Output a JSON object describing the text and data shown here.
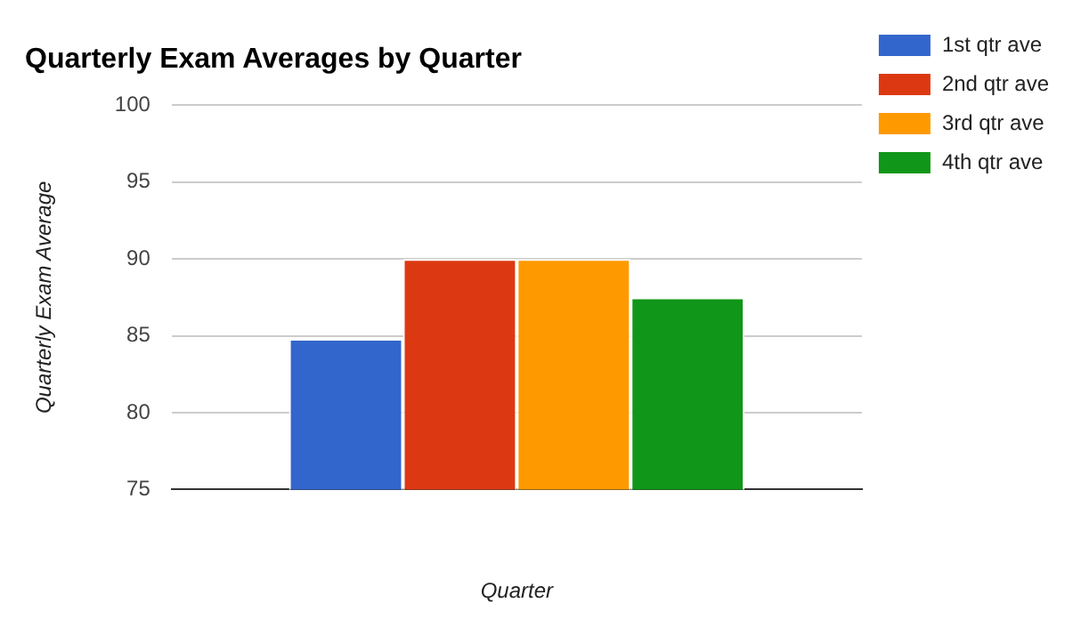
{
  "chart_data": {
    "type": "bar",
    "title": "Quarterly Exam Averages by Quarter",
    "xlabel": "Quarter",
    "ylabel": "Quarterly Exam Average",
    "categories": [
      null
    ],
    "series": [
      {
        "name": "1st qtr ave",
        "color": "#3366cc",
        "values": [
          84.8
        ]
      },
      {
        "name": "2nd qtr ave",
        "color": "#dc3912",
        "values": [
          90
        ]
      },
      {
        "name": "3rd qtr ave",
        "color": "#ff9900",
        "values": [
          90
        ]
      },
      {
        "name": "4th qtr ave",
        "color": "#109618",
        "values": [
          87.5
        ]
      }
    ],
    "ylim": [
      75,
      100
    ],
    "yticks": [
      75,
      80,
      85,
      90,
      95,
      100
    ],
    "grid": "y",
    "legend": "right"
  }
}
